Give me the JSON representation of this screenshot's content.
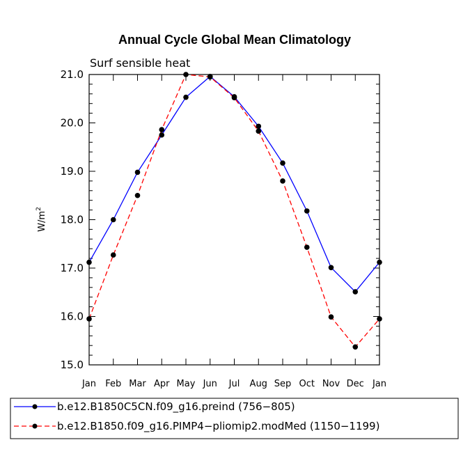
{
  "chart_data": {
    "type": "line",
    "title": "Annual Cycle Global Mean Climatology",
    "subtitle": "Surf sensible heat",
    "ylabel_base": "W/m",
    "ylabel_sup": "2",
    "categories": [
      "Jan",
      "Feb",
      "Mar",
      "Apr",
      "May",
      "Jun",
      "Jul",
      "Aug",
      "Sep",
      "Oct",
      "Nov",
      "Dec",
      "Jan"
    ],
    "ylim": [
      15.0,
      21.0
    ],
    "yticks": [
      15.0,
      16.0,
      17.0,
      18.0,
      19.0,
      20.0,
      21.0
    ],
    "ytick_labels": [
      "15.0",
      "16.0",
      "17.0",
      "18.0",
      "19.0",
      "20.0",
      "21.0"
    ],
    "series": [
      {
        "name": "b.e12.B1850C5CN.f09_g16.preind (756−805)",
        "color": "#0000ff",
        "dash": "solid",
        "values": [
          17.12,
          18.0,
          18.98,
          19.75,
          20.53,
          20.96,
          20.54,
          19.93,
          19.17,
          18.18,
          17.01,
          16.51,
          17.12
        ]
      },
      {
        "name": "b.e12.B1850.f09_g16.PIMP4−pliomip2.modMed (1150−1199)",
        "color": "#ff0000",
        "dash": "dashed",
        "values": [
          15.95,
          17.27,
          18.5,
          19.86,
          21.0,
          20.95,
          20.52,
          19.83,
          18.8,
          17.43,
          15.99,
          15.37,
          15.95
        ]
      }
    ]
  }
}
